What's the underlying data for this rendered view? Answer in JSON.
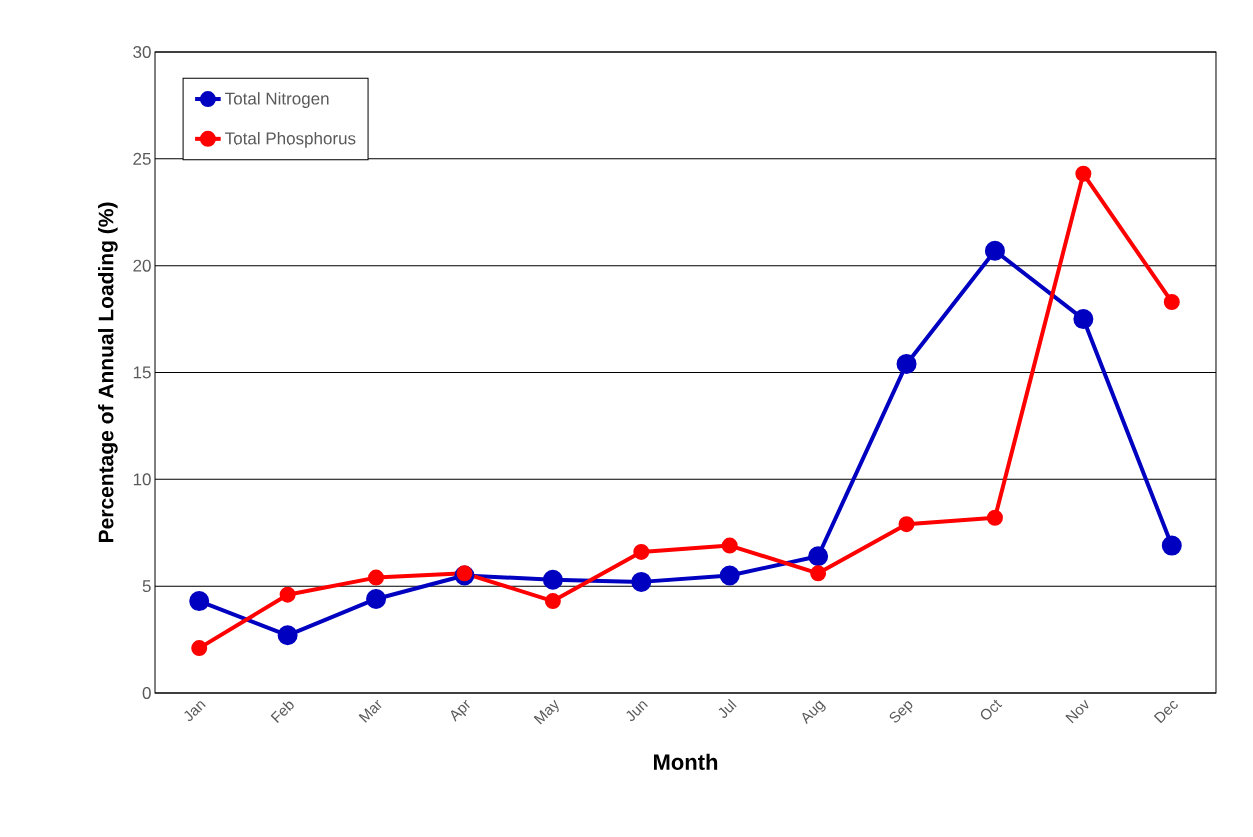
{
  "chart_data": {
    "type": "line",
    "xlabel": "Month",
    "ylabel": "Percentage of Annual Loading  (%)",
    "categories": [
      "Jan",
      "Feb",
      "Mar",
      "Apr",
      "May",
      "Jun",
      "Jul",
      "Aug",
      "Sep",
      "Oct",
      "Nov",
      "Dec"
    ],
    "series": [
      {
        "name": "Total Nitrogen",
        "color": "#0000c0",
        "values": [
          4.3,
          2.7,
          4.4,
          5.5,
          5.3,
          5.2,
          5.5,
          6.4,
          15.4,
          20.7,
          17.5,
          6.9
        ]
      },
      {
        "name": "Total Phosphorus",
        "color": "#ff0000",
        "values": [
          2.1,
          4.6,
          5.4,
          5.6,
          4.3,
          6.6,
          6.9,
          5.6,
          7.9,
          8.2,
          24.3,
          18.3
        ]
      }
    ],
    "ylim": [
      0,
      30
    ],
    "yticks": [
      0,
      5,
      10,
      15,
      20,
      25,
      30
    ],
    "grid": "y",
    "legend": "top left",
    "marker": "circle",
    "line_style": "solid"
  }
}
